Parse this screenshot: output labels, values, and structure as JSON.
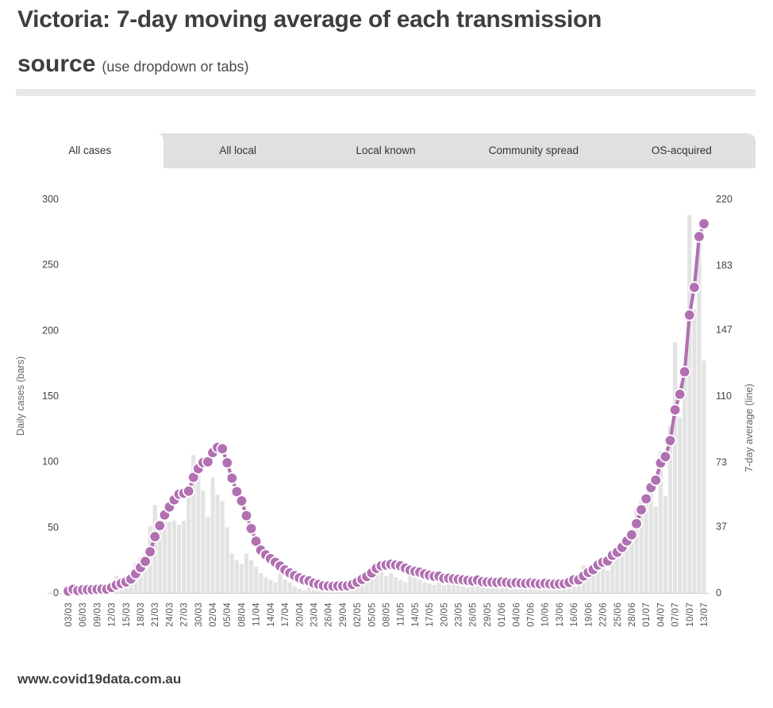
{
  "page": {
    "title_line1": "Victoria: 7-day moving average of each transmission",
    "title_line2_bold": "source",
    "title_line2_note": "(use dropdown or tabs)",
    "footer": "www.covid19data.com.au"
  },
  "tabs": {
    "items": [
      "All cases",
      "All local",
      "Local known",
      "Community spread",
      "OS-acquired"
    ],
    "active": "All cases"
  },
  "chart_data": {
    "type": "bar+line",
    "title": "",
    "frequency": "daily",
    "start_date": "03/03",
    "end_date": "13/07",
    "x_tick_labels": [
      "03/03",
      "06/03",
      "09/03",
      "12/03",
      "15/03",
      "18/03",
      "21/03",
      "24/03",
      "27/03",
      "30/03",
      "02/04",
      "05/04",
      "08/04",
      "11/04",
      "14/04",
      "17/04",
      "20/04",
      "23/04",
      "26/04",
      "29/04",
      "02/05",
      "05/05",
      "08/05",
      "11/05",
      "14/05",
      "17/05",
      "20/05",
      "23/05",
      "26/05",
      "29/05",
      "01/06",
      "04/06",
      "07/06",
      "10/06",
      "13/06",
      "16/06",
      "19/06",
      "22/06",
      "25/06",
      "28/06",
      "01/07",
      "04/07",
      "07/07",
      "10/07",
      "13/07"
    ],
    "daily_values": [
      1,
      3,
      0,
      3,
      2,
      2,
      3,
      2,
      3,
      6,
      13,
      8,
      8,
      14,
      23,
      27,
      30,
      51,
      67,
      51,
      56,
      54,
      55,
      52,
      55,
      75,
      105,
      90,
      78,
      58,
      88,
      75,
      70,
      50,
      30,
      25,
      22,
      30,
      25,
      20,
      15,
      12,
      10,
      8,
      15,
      10,
      8,
      5,
      3,
      2,
      4,
      6,
      5,
      3,
      4,
      2,
      3,
      4,
      7,
      10,
      12,
      15,
      13,
      17,
      22,
      17,
      13,
      15,
      12,
      10,
      8,
      14,
      12,
      10,
      8,
      7,
      6,
      8,
      6,
      12,
      8,
      6,
      5,
      4,
      6,
      9,
      6,
      7,
      5,
      4,
      6,
      4,
      6,
      8,
      5,
      4,
      6,
      4,
      2,
      8,
      6,
      4,
      5,
      7,
      9,
      12,
      8,
      21,
      18,
      16,
      25,
      20,
      17,
      30,
      33,
      37,
      41,
      49,
      64,
      71,
      73,
      77,
      66,
      108,
      74,
      127,
      191,
      134,
      165,
      288,
      216,
      273,
      177
    ],
    "series": [
      {
        "name": "Daily cases",
        "mark": "bar",
        "axis": "left",
        "source": "daily_values"
      },
      {
        "name": "7-day average",
        "mark": "line+dots",
        "axis": "right",
        "derivation": "trailing 7-day mean of daily_values"
      }
    ],
    "left_axis": {
      "label": "Daily cases (bars)",
      "ticks": [
        0,
        50,
        100,
        150,
        200,
        250,
        300
      ],
      "range": [
        0,
        300
      ]
    },
    "right_axis": {
      "label": "7-day average (line)",
      "ticks": [
        0,
        37,
        73,
        110,
        147,
        183,
        220
      ],
      "range": [
        0,
        220
      ]
    },
    "legend": "none",
    "grid": "baseline only",
    "colors": {
      "bar": "#e3e3e3",
      "line": "#b170b1",
      "dot": "#b170b1",
      "dot_ring": "#ffffff",
      "baseline": "#d0d0d0",
      "tick_text": "#444444",
      "axis_title": "#666666",
      "x_label": "#555555"
    }
  }
}
